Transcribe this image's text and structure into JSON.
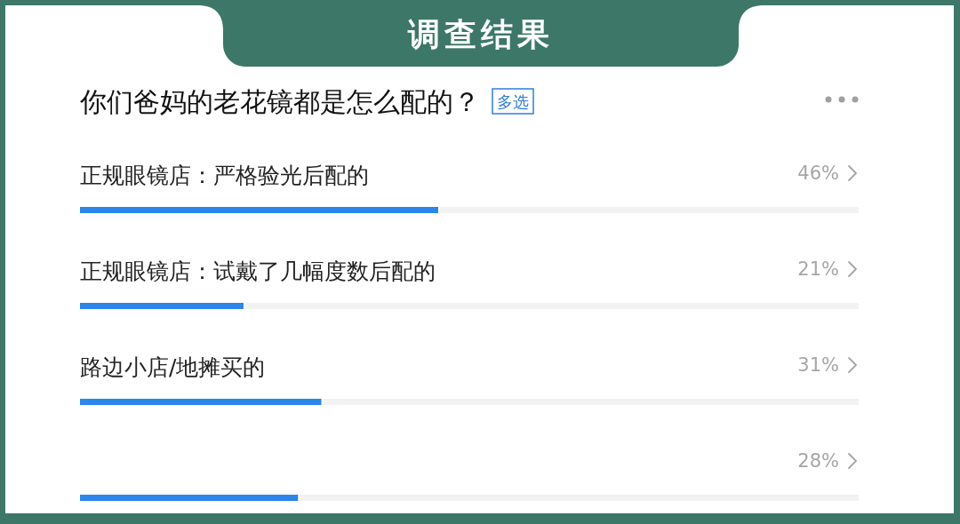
{
  "chart_data": {
    "type": "bar",
    "orientation": "horizontal",
    "title": "调查结果",
    "subtitle": "你们爸妈的老花镜都是怎么配的？",
    "annotations": [
      "多选"
    ],
    "categories": [
      "正规眼镜店：严格验光后配的",
      "正规眼镜店：试戴了几幅度数后配的",
      "路边小店/地摊买的",
      null
    ],
    "values": [
      46,
      21,
      31,
      28
    ],
    "value_labels": [
      "46%",
      "21%",
      "31%",
      "28%"
    ],
    "color": "#2a86e8",
    "xlim": [
      0,
      100
    ],
    "tick_labels": "y"
  }
}
